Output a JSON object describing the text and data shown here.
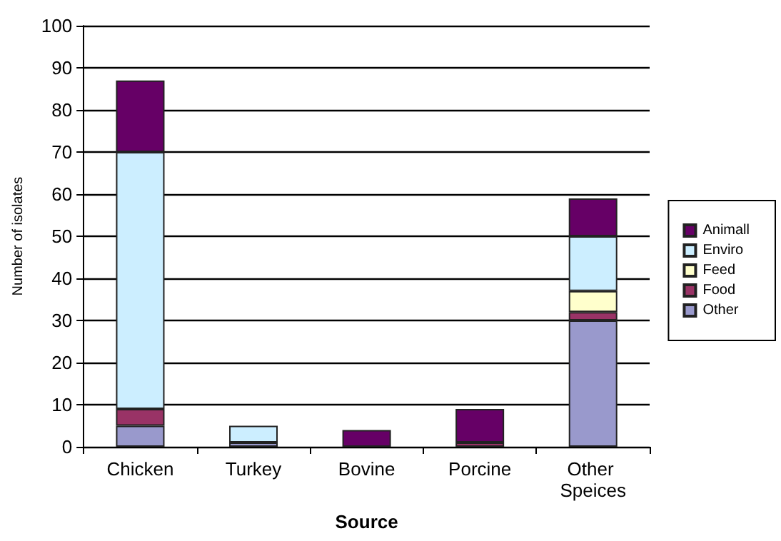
{
  "chart_data": {
    "type": "bar",
    "stacked": true,
    "xlabel": "Source",
    "ylabel": "Number of isolates",
    "categories": [
      "Chicken",
      "Turkey",
      "Bovine",
      "Porcine",
      "Other Speices"
    ],
    "series": [
      {
        "name": "Other",
        "color": "#9999cc",
        "values": [
          5,
          1,
          0,
          0,
          30
        ]
      },
      {
        "name": "Food",
        "color": "#993366",
        "values": [
          4,
          0,
          0,
          1,
          2
        ]
      },
      {
        "name": "Feed",
        "color": "#ffffcc",
        "values": [
          0,
          0,
          0,
          0,
          5
        ]
      },
      {
        "name": "Enviro",
        "color": "#cceeff",
        "values": [
          61,
          4,
          0,
          0,
          13
        ]
      },
      {
        "name": "Animall",
        "color": "#660066",
        "values": [
          17,
          0,
          4,
          8,
          9
        ]
      }
    ],
    "ylim": [
      0,
      100
    ],
    "yticks": [
      0,
      10,
      20,
      30,
      40,
      50,
      60,
      70,
      80,
      90,
      100
    ],
    "grid": "y",
    "legend": "right"
  }
}
